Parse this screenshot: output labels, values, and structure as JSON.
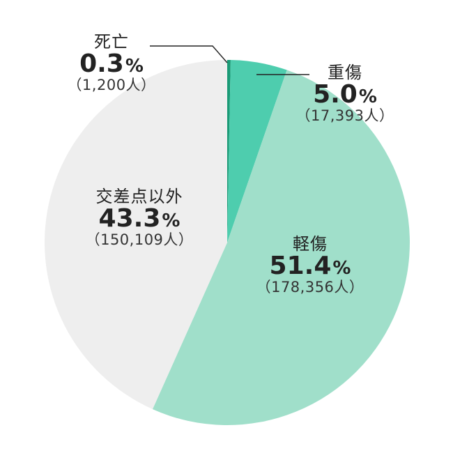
{
  "chart_data": {
    "type": "pie",
    "start_angle_deg": 0,
    "direction": "clockwise",
    "slices": [
      {
        "label": "死亡",
        "percent": 0.3,
        "pct_text": "0.3",
        "unit": "%",
        "count_text": "（1,200人）",
        "color": "#1a9a76"
      },
      {
        "label": "重傷",
        "percent": 5.0,
        "pct_text": "5.0",
        "unit": "%",
        "count_text": "（17,393人）",
        "color": "#4ecdae"
      },
      {
        "label": "軽傷",
        "percent": 51.4,
        "pct_text": "51.4",
        "unit": "%",
        "count_text": "（178,356人）",
        "color": "#a0dfca"
      },
      {
        "label": "交差点以外",
        "percent": 43.3,
        "pct_text": "43.3",
        "unit": "%",
        "count_text": "（150,109人）",
        "color": "#eeeeee"
      }
    ]
  }
}
